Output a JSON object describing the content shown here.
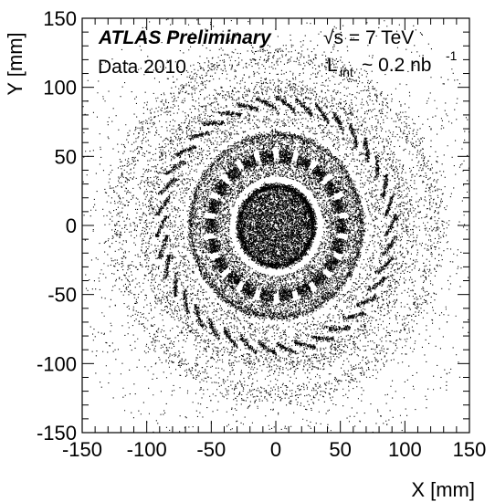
{
  "chart_data": {
    "type": "scatter",
    "title": "",
    "xlabel": "X [mm]",
    "ylabel": "Y [mm]",
    "xlim": [
      -150,
      150
    ],
    "ylim": [
      -150,
      150
    ],
    "xticks": [
      "-150",
      "-100",
      "-50",
      "0",
      "50",
      "100",
      "150"
    ],
    "yticks": [
      "-150",
      "-100",
      "-50",
      "0",
      "50",
      "100",
      "150"
    ],
    "grid": false,
    "annotations": {
      "experiment": "ATLAS Preliminary",
      "dataset": "Data 2010",
      "energy": "√s = 7 TeV",
      "lumi_prefix": "L",
      "lumi_sub": "int",
      "lumi_value": "~ 0.2 nb",
      "lumi_exp": "-1"
    },
    "point_color": "#000000",
    "structures": [
      {
        "name": "beam pipe",
        "radius_mm": 29
      },
      {
        "name": "pixel layer 1",
        "radius_mm": 51,
        "modules": 22
      },
      {
        "name": "pixel layer 2",
        "radius_mm": 89,
        "modules": 38
      },
      {
        "name": "pixel layer 3",
        "radius_mm": 123
      }
    ]
  }
}
